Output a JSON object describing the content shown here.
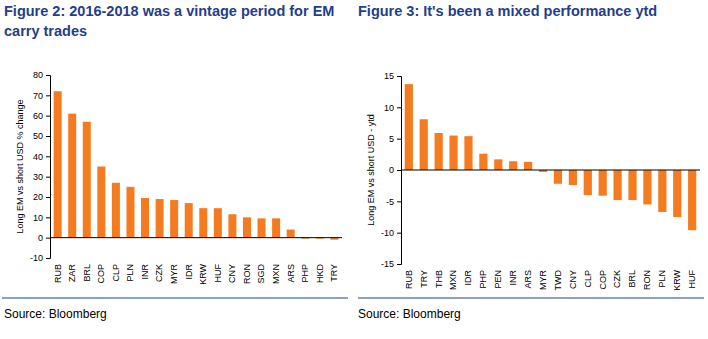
{
  "chart_data": [
    {
      "type": "bar",
      "title": "Figure 2: 2016-2018 was a vintage period for EM carry trades",
      "y_label": "Long EM vs short USD % change",
      "source": "Source: Bloomberg",
      "categories": [
        "RUB",
        "ZAR",
        "BRL",
        "COP",
        "CLP",
        "PLN",
        "INR",
        "CZK",
        "MYR",
        "IDR",
        "KRW",
        "HUF",
        "CNY",
        "RON",
        "SGD",
        "MXN",
        "ARS",
        "PHP",
        "HKD",
        "TRY"
      ],
      "values": [
        72,
        61,
        57,
        35,
        27,
        25,
        19.5,
        19,
        18.5,
        17,
        14.5,
        14.5,
        11.5,
        10,
        9.5,
        9.5,
        4,
        -0.5,
        -0.5,
        -1
      ],
      "color": "#f47b20",
      "ylim": [
        -10,
        80
      ],
      "yticks": [
        -10,
        0,
        10,
        20,
        30,
        40,
        50,
        60,
        70,
        80
      ],
      "grid": false
    },
    {
      "type": "bar",
      "title": "Figure 3: It's been a mixed performance ytd",
      "y_label": "Long EM vs short USD - ytd",
      "source": "Source: Bloomberg",
      "categories": [
        "RUB",
        "TRY",
        "THB",
        "MXN",
        "IDR",
        "PHP",
        "PEN",
        "INR",
        "ARS",
        "MYR",
        "TWD",
        "CNY",
        "CLP",
        "COP",
        "CZK",
        "BRL",
        "RON",
        "PLN",
        "KRW",
        "HUF"
      ],
      "values": [
        13.7,
        8.1,
        5.9,
        5.5,
        5.4,
        2.6,
        1.7,
        1.4,
        1.3,
        -0.3,
        -2.2,
        -2.4,
        -4.0,
        -4.1,
        -4.8,
        -4.8,
        -5.5,
        -6.7,
        -7.5,
        -9.6
      ],
      "color": "#f47b20",
      "ylim": [
        -15,
        15
      ],
      "yticks": [
        -15,
        -10,
        -5,
        0,
        5,
        10,
        15
      ],
      "grid": false
    }
  ]
}
